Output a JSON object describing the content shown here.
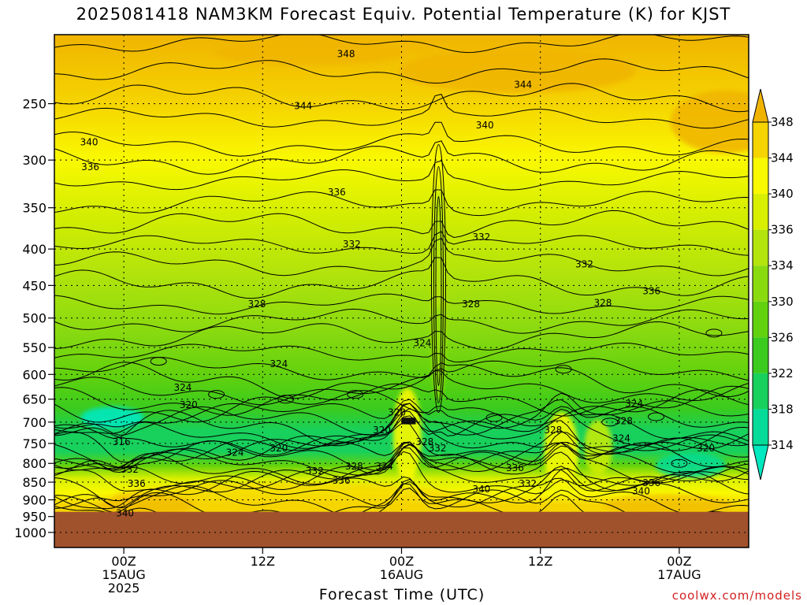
{
  "title": "2025081418 NAM3KM Forecast Equiv. Potential Temperature (K) for KJST",
  "credit": "coolwx.com/models",
  "chart_data": {
    "type": "heatmap",
    "title": "2025081418 NAM3KM Forecast Equiv. Potential Temperature (K) for KJST",
    "xlabel": "Forecast Time (UTC)",
    "ylabel": "",
    "x_ticks": [
      {
        "hour": 6,
        "lines": [
          "00Z",
          "15AUG",
          "2025"
        ]
      },
      {
        "hour": 18,
        "lines": [
          "12Z"
        ]
      },
      {
        "hour": 30,
        "lines": [
          "00Z",
          "16AUG"
        ]
      },
      {
        "hour": 42,
        "lines": [
          "12Z"
        ]
      },
      {
        "hour": 54,
        "lines": [
          "00Z",
          "17AUG"
        ]
      }
    ],
    "xlim": [
      0,
      60
    ],
    "y_scale": "log-pressure",
    "ylim": [
      1050,
      200
    ],
    "y_ticks": [
      250,
      300,
      350,
      400,
      450,
      500,
      550,
      600,
      650,
      700,
      750,
      800,
      850,
      900,
      950,
      1000
    ],
    "ground_pressure": 950,
    "colorbar": {
      "levels": [
        314,
        318,
        322,
        326,
        330,
        334,
        336,
        340,
        344,
        348
      ],
      "labels": [
        "314",
        "318",
        "322",
        "326",
        "330",
        "334",
        "336",
        "340",
        "344",
        "348"
      ],
      "colors": [
        "#00e8bf",
        "#06dc99",
        "#18d05c",
        "#3bcb1e",
        "#62d20e",
        "#8ada10",
        "#b3e40b",
        "#d8ef00",
        "#f9f900",
        "#f5d400",
        "#f0b400"
      ]
    },
    "contour_labels": [
      {
        "text": "348",
        "hour": 25.2,
        "p": 213
      },
      {
        "text": "344",
        "hour": 40.5,
        "p": 235
      },
      {
        "text": "344",
        "hour": 21.5,
        "p": 252
      },
      {
        "text": "340",
        "hour": 37.2,
        "p": 268
      },
      {
        "text": "340",
        "hour": 3.0,
        "p": 283
      },
      {
        "text": "336",
        "hour": 3.1,
        "p": 307
      },
      {
        "text": "336",
        "hour": 24.4,
        "p": 333
      },
      {
        "text": "332",
        "hour": 25.7,
        "p": 394
      },
      {
        "text": "332",
        "hour": 36.9,
        "p": 385
      },
      {
        "text": "332",
        "hour": 45.8,
        "p": 420
      },
      {
        "text": "336",
        "hour": 51.6,
        "p": 458
      },
      {
        "text": "328",
        "hour": 17.5,
        "p": 478
      },
      {
        "text": "328",
        "hour": 36.0,
        "p": 478
      },
      {
        "text": "328",
        "hour": 47.4,
        "p": 476
      },
      {
        "text": "324",
        "hour": 31.8,
        "p": 542
      },
      {
        "text": "324",
        "hour": 19.4,
        "p": 580
      },
      {
        "text": "324",
        "hour": 11.1,
        "p": 626
      },
      {
        "text": "320",
        "hour": 11.6,
        "p": 662
      },
      {
        "text": "320",
        "hour": 29.6,
        "p": 678
      },
      {
        "text": "324",
        "hour": 50.1,
        "p": 660
      },
      {
        "text": "328",
        "hour": 49.2,
        "p": 698
      },
      {
        "text": "328",
        "hour": 43.1,
        "p": 718
      },
      {
        "text": "324",
        "hour": 49.0,
        "p": 738
      },
      {
        "text": "320",
        "hour": 28.3,
        "p": 718
      },
      {
        "text": "328",
        "hour": 32.0,
        "p": 746
      },
      {
        "text": "332",
        "hour": 33.1,
        "p": 762
      },
      {
        "text": "316",
        "hour": 5.8,
        "p": 746
      },
      {
        "text": "320",
        "hour": 19.4,
        "p": 762
      },
      {
        "text": "324",
        "hour": 15.6,
        "p": 772
      },
      {
        "text": "332",
        "hour": 6.5,
        "p": 816
      },
      {
        "text": "328",
        "hour": 25.9,
        "p": 808
      },
      {
        "text": "324",
        "hour": 28.5,
        "p": 808
      },
      {
        "text": "332",
        "hour": 22.5,
        "p": 820
      },
      {
        "text": "336",
        "hour": 24.8,
        "p": 846
      },
      {
        "text": "336",
        "hour": 7.1,
        "p": 854
      },
      {
        "text": "336",
        "hour": 39.8,
        "p": 812
      },
      {
        "text": "332",
        "hour": 40.9,
        "p": 854
      },
      {
        "text": "336",
        "hour": 51.6,
        "p": 852
      },
      {
        "text": "320",
        "hour": 56.3,
        "p": 762
      },
      {
        "text": "340",
        "hour": 36.9,
        "p": 870
      },
      {
        "text": "340",
        "hour": 50.7,
        "p": 875
      },
      {
        "text": "340",
        "hour": 6.1,
        "p": 940
      }
    ]
  }
}
